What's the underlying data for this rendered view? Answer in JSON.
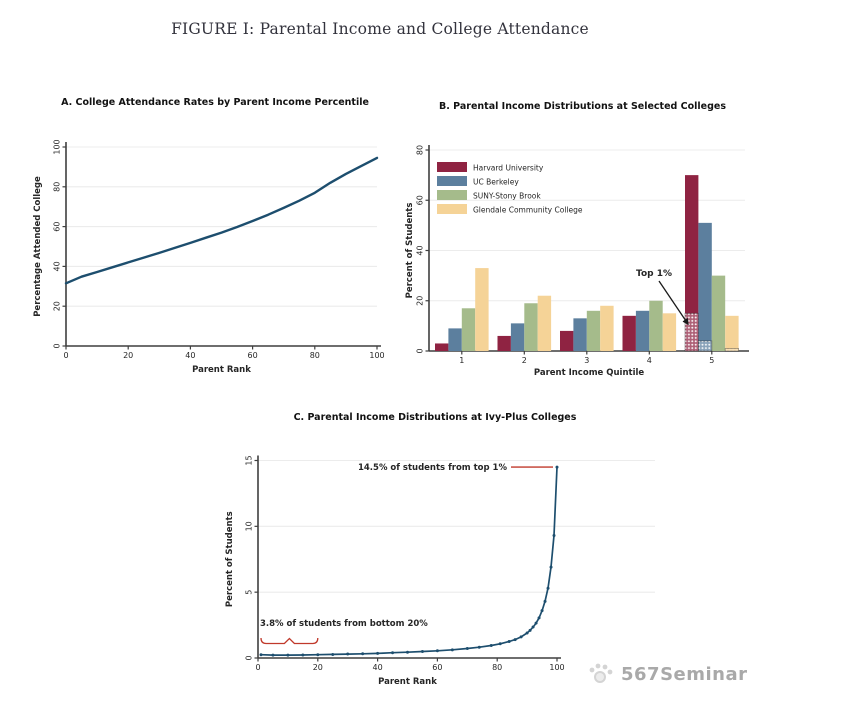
{
  "figure": {
    "title": "FIGURE I: Parental Income and College Attendance"
  },
  "watermark": {
    "label": "567Seminar",
    "icon": "paw-icon"
  },
  "colors": {
    "line": "#1d4e6e",
    "grid": "#ececec",
    "axis": "#3f3f3f",
    "annotation_red": "#c0392b",
    "text": "#1f1f1f",
    "watermark": "#adadad"
  },
  "chart_data": [
    {
      "id": "panel-a",
      "type": "line",
      "title": "A. College Attendance Rates by Parent Income Percentile",
      "xlabel": "Parent Rank",
      "ylabel": "Percentage Attended College",
      "xlim": [
        0,
        100
      ],
      "ylim": [
        0,
        100
      ],
      "xticks": [
        0,
        20,
        40,
        60,
        80,
        100
      ],
      "yticks": [
        0,
        20,
        40,
        60,
        80,
        100
      ],
      "grid": true,
      "line_color": "#1d4e6e",
      "x": [
        0,
        5,
        10,
        15,
        20,
        25,
        30,
        35,
        40,
        45,
        50,
        55,
        60,
        65,
        70,
        75,
        80,
        85,
        90,
        95,
        100
      ],
      "y": [
        31.5,
        34.8,
        37.2,
        39.6,
        42,
        44.4,
        46.8,
        49.3,
        51.8,
        54.4,
        57,
        59.8,
        62.8,
        66,
        69.4,
        73,
        77,
        82,
        86.5,
        90.5,
        94.5
      ]
    },
    {
      "id": "panel-b",
      "type": "bar",
      "title": "B. Parental Income Distributions at Selected Colleges",
      "xlabel": "Parent Income Quintile",
      "ylabel": "Percent of Students",
      "categories": [
        "1",
        "2",
        "3",
        "4",
        "5"
      ],
      "ylim": [
        0,
        80
      ],
      "yticks": [
        0,
        20,
        40,
        60,
        80
      ],
      "grid": true,
      "legend_position": "top-left",
      "series": [
        {
          "name": "Harvard University",
          "color": "#8f2342",
          "values": [
            3,
            6,
            8,
            14,
            70
          ],
          "top1_pct_q5": 15
        },
        {
          "name": "UC Berkeley",
          "color": "#5c7f9e",
          "values": [
            9,
            11,
            13,
            16,
            51
          ],
          "top1_pct_q5": 4
        },
        {
          "name": "SUNY-Stony Brook",
          "color": "#a5bb8b",
          "values": [
            17,
            19,
            16,
            20,
            30
          ],
          "top1_pct_q5": 0
        },
        {
          "name": "Glendale Community College",
          "color": "#f5d397",
          "values": [
            33,
            22,
            18,
            15,
            14
          ],
          "top1_pct_q5": 1
        }
      ],
      "annotation": {
        "label": "Top 1%"
      }
    },
    {
      "id": "panel-c",
      "type": "line",
      "title": "C. Parental Income Distributions at Ivy-Plus Colleges",
      "xlabel": "Parent Rank",
      "ylabel": "Percent of Students",
      "xlim": [
        0,
        100
      ],
      "ylim": [
        0,
        15
      ],
      "xticks": [
        0,
        20,
        40,
        60,
        80,
        100
      ],
      "yticks": [
        0,
        5,
        10,
        15
      ],
      "grid": true,
      "line_color": "#1d4e6e",
      "x": [
        1,
        5,
        10,
        15,
        20,
        25,
        30,
        35,
        40,
        45,
        50,
        55,
        60,
        65,
        70,
        74,
        78,
        81,
        84,
        86,
        88,
        90,
        91,
        92,
        93,
        94,
        95,
        96,
        97,
        98,
        99,
        100
      ],
      "y": [
        0.25,
        0.22,
        0.22,
        0.23,
        0.25,
        0.27,
        0.3,
        0.32,
        0.35,
        0.4,
        0.44,
        0.49,
        0.55,
        0.62,
        0.72,
        0.82,
        0.95,
        1.08,
        1.25,
        1.4,
        1.6,
        1.9,
        2.1,
        2.35,
        2.65,
        3.05,
        3.6,
        4.3,
        5.3,
        6.9,
        9.3,
        14.5
      ],
      "annotations": [
        {
          "label": "14.5% of students from top 1%",
          "target_x": 100,
          "target_y": 14.5
        },
        {
          "label": "3.8% of students from bottom 20%",
          "span": [
            0,
            20
          ]
        }
      ]
    }
  ]
}
